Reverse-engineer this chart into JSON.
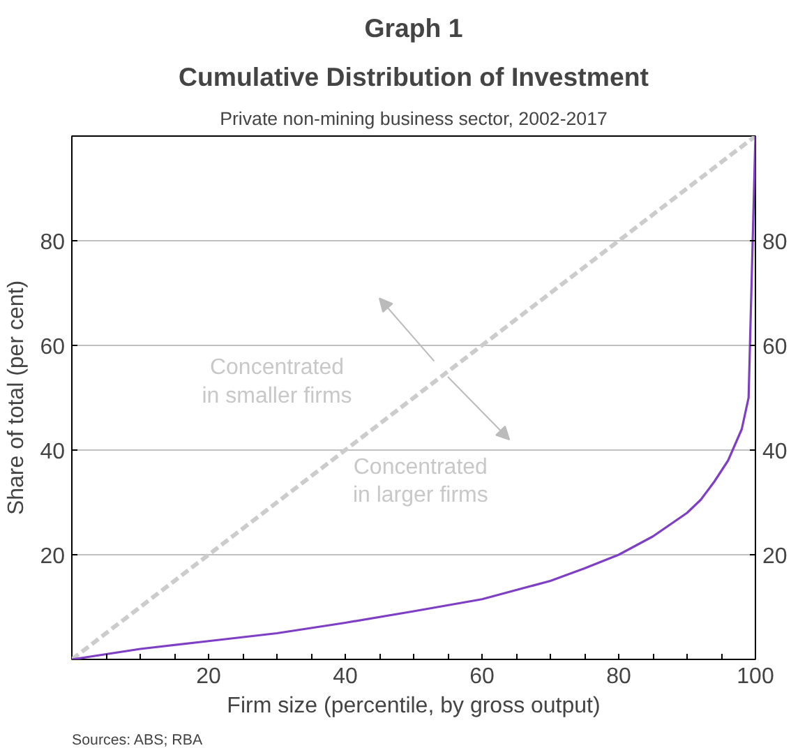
{
  "chart_data": {
    "type": "line",
    "title": "Cumulative Distribution of Investment",
    "subtitle": "Private non-mining business sector, 2002-2017",
    "xlabel": "Firm size (percentile, by gross output)",
    "ylabel": "Share of total (per cent)",
    "series": [
      {
        "color": "#cccccc",
        "line_style": "dashed",
        "x": [
          0,
          100
        ],
        "values": [
          0,
          100
        ]
      },
      {
        "color": "#7e3fc4",
        "line_style": "solid",
        "x": [
          0,
          10,
          20,
          30,
          40,
          50,
          60,
          70,
          75,
          80,
          85,
          90,
          92,
          94,
          96,
          98,
          99,
          100
        ],
        "values": [
          0,
          2,
          3.5,
          5,
          7,
          9.2,
          11.5,
          15,
          17.4,
          20,
          23.5,
          28,
          30.5,
          34,
          38,
          44,
          50,
          100
        ]
      }
    ],
    "xlim": [
      0,
      100
    ],
    "xticks": [
      {
        "value": 5,
        "label": null
      },
      {
        "value": 10,
        "label": null
      },
      {
        "value": 15,
        "label": null
      },
      20,
      {
        "value": 25,
        "label": null
      },
      {
        "value": 30,
        "label": null
      },
      {
        "value": 35,
        "label": null
      },
      40,
      {
        "value": 45,
        "label": null
      },
      {
        "value": 50,
        "label": null
      },
      {
        "value": 55,
        "label": null
      },
      60,
      {
        "value": 65,
        "label": null
      },
      {
        "value": 70,
        "label": null
      },
      {
        "value": 75,
        "label": null
      },
      80,
      {
        "value": 85,
        "label": null
      },
      {
        "value": 90,
        "label": null
      },
      {
        "value": 95,
        "label": null
      },
      100
    ],
    "ylim": [
      0,
      100
    ],
    "yticks": [
      20,
      40,
      60,
      80
    ],
    "y2lim": [
      0,
      100
    ],
    "y2ticks": [
      20,
      40,
      60,
      80
    ],
    "grid": "y",
    "marker": "none",
    "annotations": [
      "Graph 1",
      "Concentrated\nin smaller firms",
      "Concentrated\nin larger firms",
      "Sources: ABS; RBA"
    ]
  }
}
